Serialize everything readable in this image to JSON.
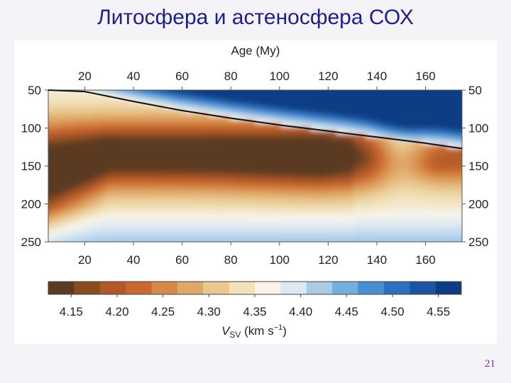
{
  "slide": {
    "title": "Литосфера и астеносфера СОХ",
    "page_number": "21"
  },
  "chart_data": {
    "type": "heatmap",
    "title": "",
    "x_axis_label": "Age (My)",
    "x_range": [
      5,
      175
    ],
    "x_ticks": [
      20,
      40,
      60,
      80,
      100,
      120,
      140,
      160
    ],
    "y_range": [
      50,
      250
    ],
    "y_ticks": [
      50,
      100,
      150,
      200,
      250
    ],
    "y_inverted": true,
    "colorbar": {
      "label_main": "V",
      "label_sub": "SV",
      "label_unit": " (km s",
      "label_exp": "−1",
      "label_close": ")",
      "ticks": [
        "4.15",
        "4.20",
        "4.25",
        "4.30",
        "4.35",
        "4.40",
        "4.45",
        "4.50",
        "4.55"
      ],
      "range": [
        4.125,
        4.575
      ],
      "colors": [
        "#5a3a22",
        "#8a4a20",
        "#b0582a",
        "#c8682e",
        "#d68a48",
        "#e0a868",
        "#e8c890",
        "#f2e2bc",
        "#f8f4ea",
        "#dce8f4",
        "#a8cce8",
        "#74aede",
        "#4a8ed2",
        "#2e70bc",
        "#1c55a2",
        "#0e3c82"
      ]
    },
    "lithosphere_base_curve": {
      "ages": [
        5,
        20,
        40,
        60,
        80,
        100,
        120,
        140,
        160,
        175
      ],
      "depths": [
        45,
        52,
        65,
        77,
        87,
        96,
        104,
        112,
        120,
        127
      ]
    }
  }
}
